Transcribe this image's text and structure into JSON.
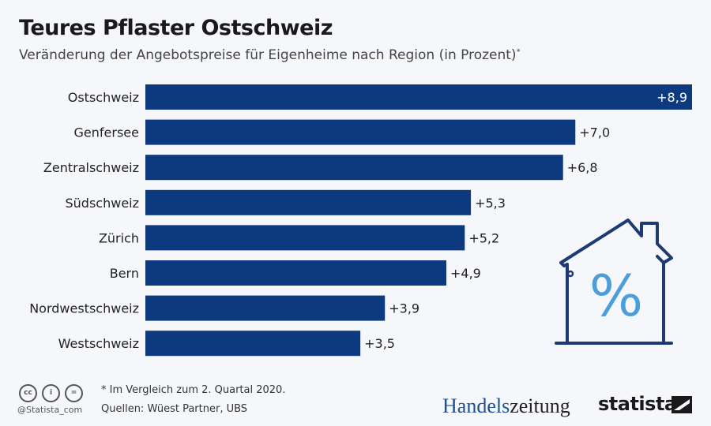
{
  "title": "Teures Pflaster Ostschweiz",
  "subtitle": "Veränderung der Angebotspreise für Eigenheime nach Region (in Prozent)",
  "subtitle_mark": "*",
  "chart_data": {
    "type": "bar",
    "orientation": "horizontal",
    "categories": [
      "Ostschweiz",
      "Genfersee",
      "Zentralschweiz",
      "Südschweiz",
      "Zürich",
      "Bern",
      "Nordwestschweiz",
      "Westschweiz"
    ],
    "values": [
      8.9,
      7.0,
      6.8,
      5.3,
      5.2,
      4.9,
      3.9,
      3.5
    ],
    "data_labels": [
      "+8,9",
      "+7,0",
      "+6,8",
      "+5,3",
      "+5,2",
      "+4,9",
      "+3,9",
      "+3,5"
    ],
    "xlim": [
      0,
      8.9
    ],
    "grid": false,
    "bar_color": "#0d3a7e"
  },
  "footer": {
    "note": "* Im Vergleich zum 2. Quartal 2020.",
    "sources": "Quellen: Wüest Partner, UBS",
    "handle": "@Statista_com",
    "cc_icons": [
      "cc",
      "i",
      "="
    ],
    "logo_handels_a": "Handels",
    "logo_handels_b": "zeitung",
    "logo_statista": "statista"
  },
  "icon": "house-percent-icon",
  "icon_symbol": "%"
}
